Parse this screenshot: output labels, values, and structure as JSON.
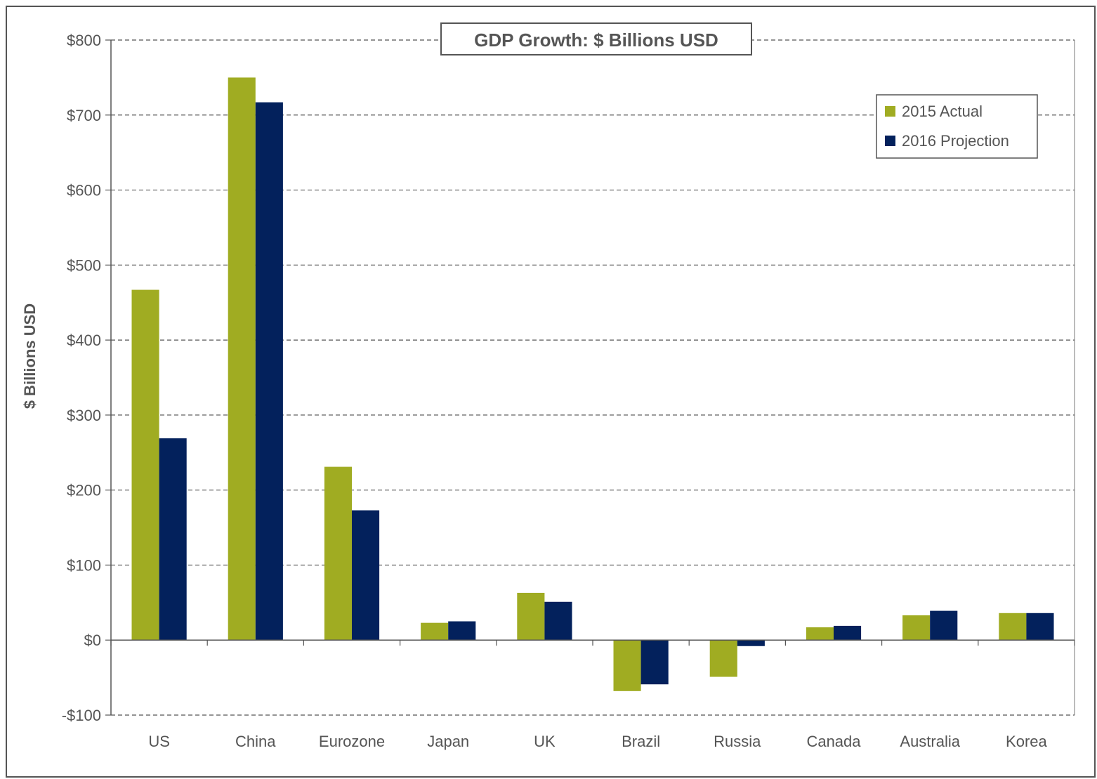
{
  "chart_data": {
    "type": "bar",
    "title": "GDP Growth: $ Billions USD",
    "xlabel": "",
    "ylabel": "$ Billions USD",
    "ylim": [
      -100,
      800
    ],
    "yticks": [
      -100,
      0,
      100,
      200,
      300,
      400,
      500,
      600,
      700,
      800
    ],
    "ytick_labels": [
      "-$100",
      "$0",
      "$100",
      "$200",
      "$300",
      "$400",
      "$500",
      "$600",
      "$700",
      "$800"
    ],
    "grid": true,
    "legend_position": "top-right",
    "categories": [
      "US",
      "China",
      "Eurozone",
      "Japan",
      "UK",
      "Brazil",
      "Russia",
      "Canada",
      "Australia",
      "Korea"
    ],
    "series": [
      {
        "name": "2015 Actual",
        "color": "#a0ac22",
        "values": [
          467,
          750,
          231,
          23,
          63,
          -68,
          -49,
          17,
          33,
          36
        ]
      },
      {
        "name": "2016 Projection",
        "color": "#03215c",
        "values": [
          269,
          717,
          173,
          25,
          51,
          -59,
          -8,
          19,
          39,
          36
        ]
      }
    ]
  }
}
